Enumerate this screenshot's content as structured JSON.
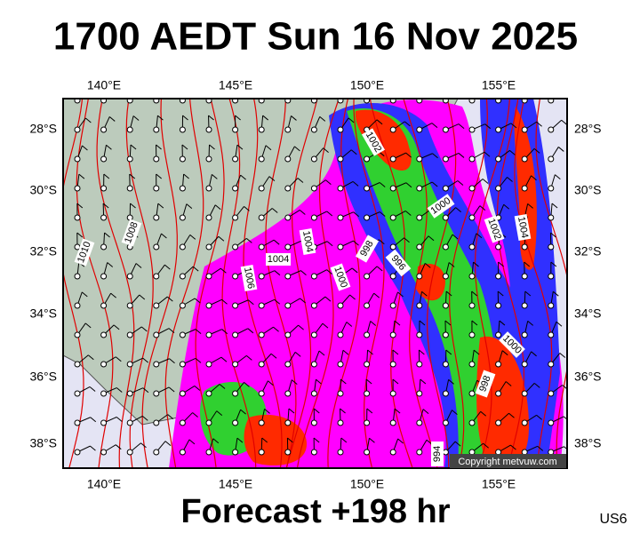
{
  "title": "1700 AEDT Sun 16 Nov 2025",
  "map": {
    "lon_labels": [
      "140°E",
      "145°E",
      "150°E",
      "155°E"
    ],
    "lat_labels": [
      "28°S",
      "30°S",
      "32°S",
      "34°S",
      "36°S",
      "38°S"
    ],
    "isobar_labels": [
      "1010",
      "1008",
      "1006",
      "1004",
      "1004",
      "1002",
      "1000",
      "1000",
      "998",
      "996",
      "1004",
      "1002",
      "1000",
      "998",
      "994"
    ],
    "copyright": "Copyright metvuw.com"
  },
  "footer": {
    "forecast": "Forecast +198 hr",
    "region": "US6"
  }
}
